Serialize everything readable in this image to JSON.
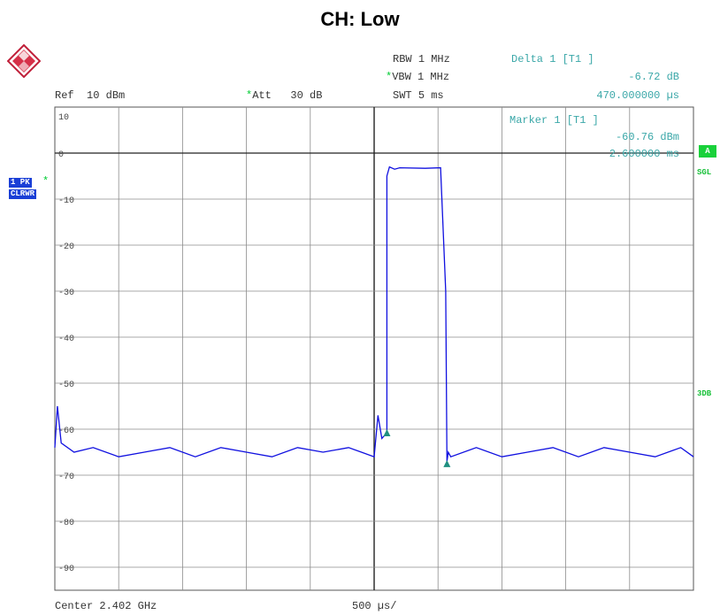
{
  "title": "CH: Low",
  "header": {
    "ref_label": "Ref",
    "ref_value": "10 dBm",
    "att_label": "Att",
    "att_value": "30 dB",
    "rbw_label": "RBW",
    "rbw_value": "1 MHz",
    "vbw_label": "VBW",
    "vbw_value": "1 MHz",
    "swt_label": "SWT",
    "swt_value": "5 ms",
    "delta_label": "Delta 1 [T1 ]",
    "delta_level": "-6.72 dB",
    "delta_time": "470.000000 µs",
    "marker_label": "Marker 1 [T1 ]",
    "marker_level": "-60.76 dBm",
    "marker_time": "2.600000 ms"
  },
  "side": {
    "trace_line1": "1 PK",
    "trace_line2": "CLRWR",
    "a_box": "A",
    "sgl": "SGL",
    "three_db": "3DB"
  },
  "footer": {
    "center": "Center 2.402 GHz",
    "span_div": "500 µs/"
  },
  "colors": {
    "trace": "#1010e0",
    "grid": "#8c8c8c",
    "marker": "#1f8f80",
    "annotation": "#3aa7a8"
  },
  "chart_data": {
    "type": "line",
    "title": "CH: Low",
    "xlabel": "",
    "ylabel": "",
    "x_unit": "ms",
    "xlim": [
      0,
      5
    ],
    "ylim": [
      -95,
      10
    ],
    "y_ticks": [
      10,
      0,
      -10,
      -20,
      -30,
      -40,
      -50,
      -60,
      -70,
      -80,
      -90
    ],
    "grid": true,
    "x_divisions": 10,
    "reference_line": 0,
    "series": [
      {
        "x": [
          0,
          0.02,
          0.05,
          0.15,
          0.3,
          0.5,
          0.7,
          0.9,
          1.1,
          1.3,
          1.5,
          1.7,
          1.9,
          2.1,
          2.3,
          2.4,
          2.5,
          2.53,
          2.56,
          2.6,
          2.6,
          2.62,
          2.66,
          2.7,
          2.9,
          3.02,
          3.06,
          3.07,
          3.08,
          3.1,
          3.3,
          3.5,
          3.7,
          3.9,
          4.1,
          4.3,
          4.5,
          4.7,
          4.9,
          5.0
        ],
        "y": [
          -64,
          -55,
          -63,
          -65,
          -64,
          -66,
          -65,
          -64,
          -66,
          -64,
          -65,
          -66,
          -64,
          -65,
          -64,
          -65,
          -66,
          -57,
          -62,
          -60.8,
          -5,
          -3,
          -3.5,
          -3.2,
          -3.3,
          -3.2,
          -30,
          -67,
          -65,
          -66,
          -64,
          -66,
          -65,
          -64,
          -66,
          -64,
          -65,
          -66,
          -64,
          -66
        ]
      }
    ],
    "markers": [
      {
        "name": "Marker 1 [T1 ]",
        "x": 2.6,
        "y": -60.76
      },
      {
        "name": "Delta 1 [T1 ]",
        "x": 3.07,
        "y": -67.48
      }
    ]
  }
}
